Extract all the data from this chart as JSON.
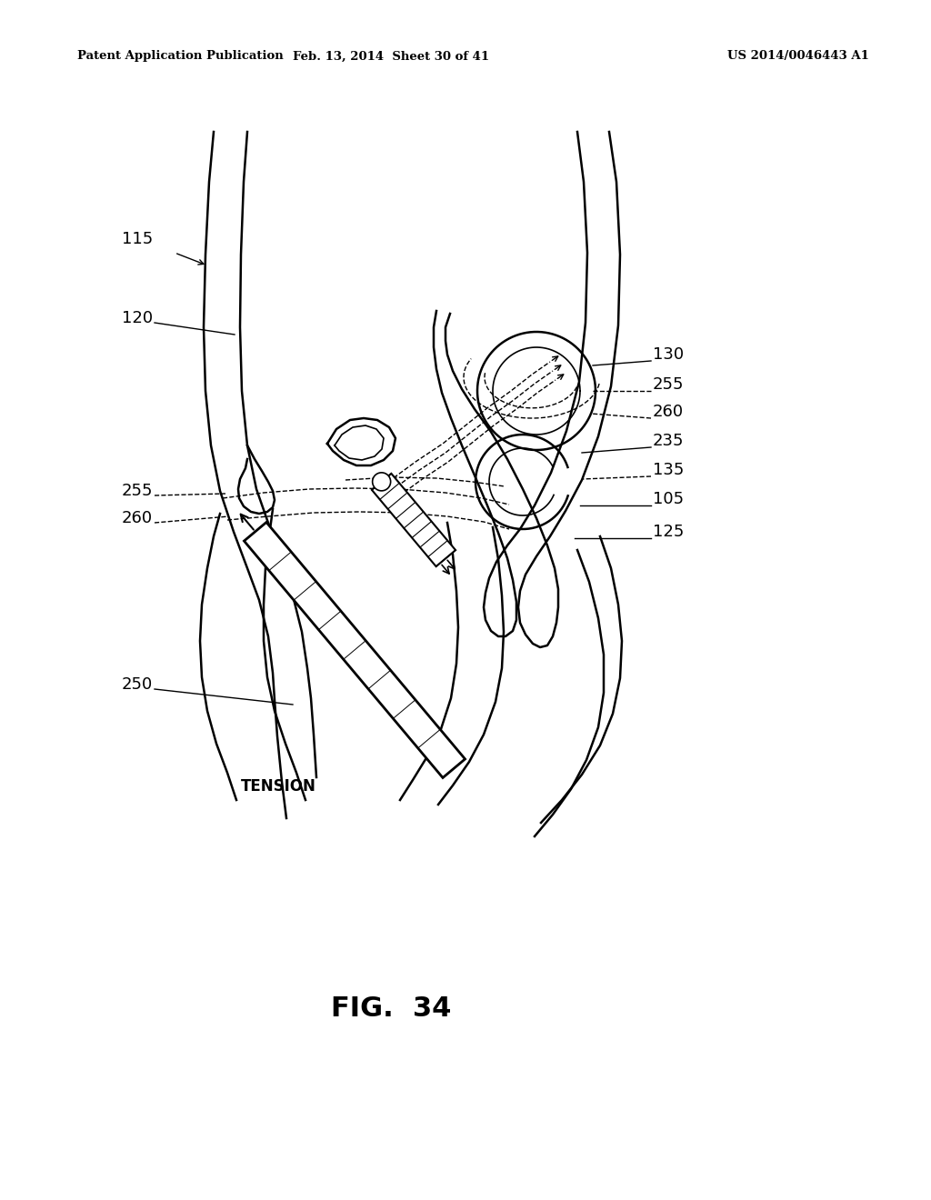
{
  "header_left": "Patent Application Publication",
  "header_mid": "Feb. 13, 2014  Sheet 30 of 41",
  "header_right": "US 2014/0046443 A1",
  "fig_label": "FIG.  34",
  "bg_color": "#ffffff",
  "lw_bone": 1.8,
  "lw_device": 1.5,
  "lw_thin": 1.2,
  "lw_dash": 1.0
}
